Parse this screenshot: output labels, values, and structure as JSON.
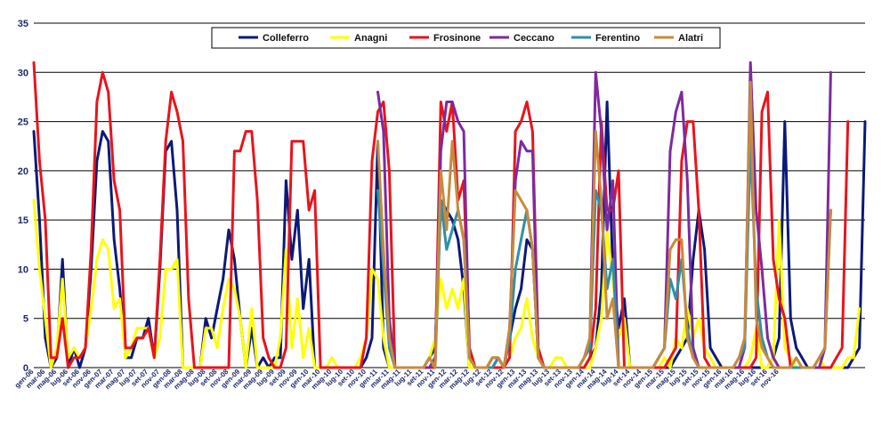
{
  "chart_data": {
    "type": "line",
    "title": "",
    "xlabel": "",
    "ylabel": "",
    "ylim": [
      0,
      35
    ],
    "y_ticks": [
      "0",
      "5",
      "10",
      "15",
      "20",
      "25",
      "30",
      "35"
    ],
    "grid": true,
    "legend_position": "top",
    "x_ticks": [
      "gen-06",
      "mar-06",
      "mag-06",
      "lug-06",
      "set-06",
      "nov-06",
      "gen-07",
      "mar-07",
      "mag-07",
      "lug-07",
      "set-07",
      "nov-07",
      "gen-08",
      "mar-08",
      "mag-08",
      "lug-08",
      "set-08",
      "nov-08",
      "gen-09",
      "mar-09",
      "mag-09",
      "lug-09",
      "set-09",
      "nov-09",
      "gen-10",
      "mar-10",
      "mag-10",
      "lug-10",
      "set-10",
      "nov-10",
      "gen-11",
      "mar-11",
      "mag-11",
      "lug-11",
      "set-11",
      "nov-11",
      "gen-12",
      "mar-12",
      "mag-12",
      "lug-12",
      "set-12",
      "nov-12",
      "gen-13",
      "mar-13",
      "mag-13",
      "lug-13",
      "set-13",
      "nov-13",
      "gen-14",
      "mar-14",
      "mag-14",
      "lug-14",
      "set-14",
      "nov-14",
      "gen-15",
      "mar-15",
      "mag-15",
      "lug-15",
      "set-15",
      "nov-15",
      "gen-16",
      "mar-16",
      "mag-16",
      "lug-16",
      "set-16",
      "nov-16"
    ],
    "series": [
      {
        "name": "Colleferro",
        "color": "#0b1a78",
        "values": [
          24,
          15,
          3,
          0,
          1,
          11,
          0,
          2,
          0,
          2,
          10,
          21,
          24,
          23,
          13,
          8,
          1,
          1,
          3,
          3,
          5,
          1,
          10,
          22,
          23,
          16,
          0,
          0,
          0,
          0,
          5,
          3,
          6,
          9,
          14,
          11,
          5,
          0,
          4,
          0,
          1,
          0,
          1,
          1,
          19,
          11,
          16,
          6,
          11,
          0,
          0,
          0,
          0,
          0,
          0,
          0,
          0,
          0,
          1,
          3,
          23,
          2,
          0,
          0,
          0,
          0,
          0,
          0,
          0,
          1,
          2,
          17,
          16,
          15,
          13,
          8,
          0,
          0,
          0,
          0,
          1,
          1,
          0,
          3,
          6,
          8,
          13,
          12,
          1,
          0,
          0,
          0,
          0,
          0,
          0,
          0,
          0,
          1,
          2,
          8,
          27,
          10,
          4,
          7,
          0,
          0,
          0,
          0,
          0,
          0,
          0,
          0,
          1,
          2,
          3,
          11,
          16,
          12,
          2,
          1,
          0,
          0,
          0,
          0,
          0,
          0,
          0,
          0,
          0,
          1,
          3,
          25,
          5,
          2,
          1,
          0,
          0,
          0,
          0,
          0,
          0,
          0,
          0,
          1,
          2,
          25
        ]
      },
      {
        "name": "Anagni",
        "color": "#ffff00",
        "values": [
          17,
          10,
          5,
          0,
          2,
          9,
          1,
          2,
          1,
          2,
          6,
          11,
          13,
          12,
          6,
          7,
          1,
          2,
          4,
          4,
          4,
          1,
          3,
          10,
          10,
          11,
          0,
          0,
          0,
          0,
          4,
          4,
          2,
          6,
          9,
          8,
          5,
          0,
          6,
          0,
          0,
          0,
          0,
          3,
          12,
          2,
          7,
          1,
          4,
          0,
          0,
          0,
          1,
          0,
          0,
          0,
          0,
          1,
          3,
          10,
          9,
          3,
          0,
          0,
          0,
          0,
          0,
          0,
          0,
          1,
          3,
          9,
          6,
          8,
          6,
          9,
          0,
          0,
          0,
          0,
          0,
          0,
          0,
          1,
          3,
          4,
          7,
          3,
          1,
          0,
          0,
          1,
          1,
          0,
          0,
          0,
          0,
          0,
          2,
          5,
          14,
          9,
          3,
          5,
          0,
          0,
          0,
          0,
          0,
          0,
          1,
          0,
          3,
          2,
          6,
          3,
          5,
          2,
          1,
          0,
          0,
          0,
          0,
          0,
          0,
          1,
          4,
          0,
          0,
          1,
          15,
          2,
          1,
          0,
          0,
          0,
          0,
          1,
          0,
          0,
          0,
          0,
          1,
          1,
          6
        ]
      },
      {
        "name": "Frosinone",
        "color": "#e8141c",
        "values": [
          31,
          21,
          15,
          1,
          1,
          5,
          0,
          1,
          1,
          2,
          12,
          27,
          30,
          28,
          19,
          16,
          2,
          2,
          3,
          3,
          4,
          1,
          11,
          23,
          28,
          26,
          23,
          7,
          0,
          0,
          0,
          0,
          0,
          0,
          0,
          22,
          22,
          24,
          24,
          17,
          3,
          1,
          0,
          0,
          2,
          23,
          23,
          23,
          16,
          18,
          0,
          0,
          0,
          0,
          0,
          0,
          0,
          0,
          3,
          21,
          26,
          27,
          20,
          0,
          0,
          0,
          0,
          0,
          0,
          0,
          0,
          27,
          24,
          27,
          17,
          19,
          2,
          0,
          0,
          0,
          0,
          0,
          0,
          1,
          24,
          25,
          27,
          24,
          2,
          0,
          0,
          0,
          0,
          0,
          0,
          0,
          0,
          1,
          6,
          25,
          16,
          16,
          20,
          0,
          0,
          0,
          0,
          0,
          0,
          0,
          0,
          1,
          2,
          21,
          25,
          25,
          16,
          1,
          0,
          0,
          0,
          0,
          0,
          0,
          0,
          0,
          1,
          26,
          28,
          11,
          7,
          5,
          0,
          0,
          0,
          0,
          0,
          0,
          0,
          0,
          1,
          2,
          25
        ]
      },
      {
        "name": "Ceccano",
        "color": "#7d2aa0",
        "values": [
          null,
          null,
          null,
          null,
          null,
          null,
          null,
          null,
          null,
          null,
          null,
          null,
          null,
          null,
          null,
          null,
          null,
          null,
          null,
          null,
          null,
          null,
          null,
          null,
          null,
          null,
          null,
          null,
          null,
          null,
          null,
          null,
          null,
          null,
          null,
          null,
          null,
          null,
          null,
          null,
          null,
          null,
          null,
          null,
          null,
          null,
          null,
          null,
          null,
          null,
          null,
          null,
          null,
          null,
          null,
          null,
          null,
          null,
          null,
          null,
          28,
          24,
          5,
          0,
          0,
          0,
          0,
          0,
          0,
          0,
          1,
          22,
          27,
          27,
          25,
          24,
          1,
          0,
          0,
          0,
          0,
          1,
          0,
          4,
          19,
          23,
          22,
          22,
          1,
          0,
          0,
          0,
          0,
          0,
          0,
          0,
          1,
          3,
          30,
          24,
          14,
          19,
          0,
          0,
          0,
          0,
          0,
          0,
          0,
          1,
          2,
          22,
          26,
          28,
          19,
          2,
          0,
          0,
          0,
          0,
          0,
          0,
          0,
          0,
          2,
          31,
          16,
          10,
          3,
          1,
          0,
          0,
          0,
          0,
          0,
          0,
          0,
          0,
          2,
          30
        ]
      },
      {
        "name": "Ferentino",
        "color": "#2f8fa8",
        "values": [
          null,
          null,
          null,
          null,
          null,
          null,
          null,
          null,
          null,
          null,
          null,
          null,
          null,
          null,
          null,
          null,
          null,
          null,
          null,
          null,
          null,
          null,
          null,
          null,
          null,
          null,
          null,
          null,
          null,
          null,
          null,
          null,
          null,
          null,
          null,
          null,
          null,
          null,
          null,
          null,
          null,
          null,
          null,
          null,
          null,
          null,
          null,
          null,
          null,
          null,
          null,
          null,
          null,
          null,
          null,
          null,
          null,
          null,
          null,
          null,
          18,
          10,
          2,
          0,
          0,
          0,
          0,
          0,
          0,
          1,
          0,
          17,
          12,
          14,
          16,
          13,
          1,
          0,
          0,
          0,
          0,
          1,
          0,
          3,
          10,
          13,
          16,
          12,
          1,
          0,
          0,
          0,
          0,
          0,
          0,
          0,
          1,
          2,
          18,
          16,
          8,
          11,
          0,
          0,
          0,
          0,
          0,
          0,
          0,
          1,
          2,
          9,
          7,
          11,
          4,
          1,
          0,
          0,
          0,
          0,
          0,
          0,
          0,
          1,
          2,
          23,
          8,
          3,
          1,
          0,
          0,
          0,
          0,
          0,
          0,
          0,
          0,
          1,
          2,
          16
        ]
      },
      {
        "name": "Alatri",
        "color": "#c88a3c",
        "values": [
          null,
          null,
          null,
          null,
          null,
          null,
          null,
          null,
          null,
          null,
          null,
          null,
          null,
          null,
          null,
          null,
          null,
          null,
          null,
          null,
          null,
          null,
          null,
          null,
          null,
          null,
          null,
          null,
          null,
          null,
          null,
          null,
          null,
          null,
          null,
          null,
          null,
          null,
          null,
          null,
          null,
          null,
          null,
          null,
          null,
          null,
          null,
          null,
          null,
          null,
          null,
          null,
          null,
          null,
          null,
          null,
          null,
          null,
          null,
          null,
          23,
          12,
          3,
          0,
          0,
          0,
          0,
          0,
          0,
          1,
          0,
          20,
          14,
          23,
          16,
          13,
          1,
          0,
          0,
          0,
          1,
          1,
          0,
          4,
          18,
          17,
          16,
          12,
          1,
          0,
          0,
          0,
          0,
          0,
          0,
          0,
          1,
          3,
          24,
          17,
          5,
          7,
          0,
          0,
          0,
          0,
          0,
          0,
          0,
          1,
          2,
          12,
          13,
          13,
          3,
          1,
          0,
          0,
          0,
          0,
          0,
          0,
          0,
          1,
          3,
          29,
          5,
          2,
          1,
          0,
          0,
          0,
          0,
          1,
          0,
          0,
          0,
          1,
          2,
          16
        ]
      }
    ]
  }
}
